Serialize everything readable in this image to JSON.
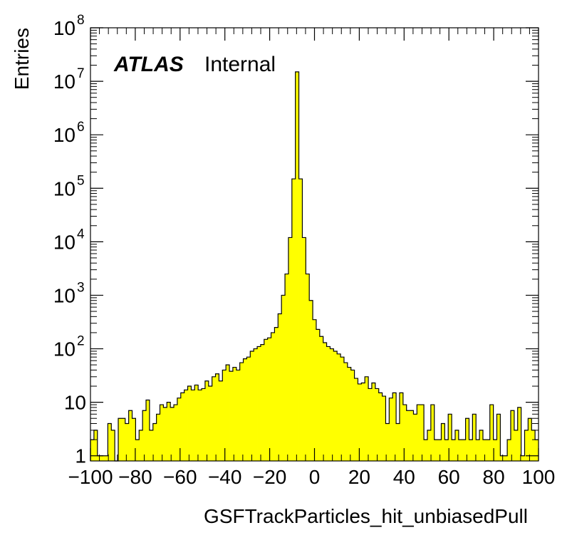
{
  "chart_data": {
    "type": "bar",
    "subtype": "histogram",
    "xlabel": "GSFTrackParticles_hit_unbiasedPull",
    "ylabel": "Entries",
    "xlim": [
      -100,
      100
    ],
    "ylim": [
      0.8,
      100000000
    ],
    "yscale": "log",
    "bin_width": 2,
    "fill_color": "#ffff00",
    "line_color": "#000000",
    "atlas_label": "ATLAS",
    "atlas_sublabel": "Internal",
    "x_ticks": [
      -100,
      -80,
      -60,
      -40,
      -20,
      0,
      20,
      40,
      60,
      80,
      100
    ],
    "x_tick_labels": [
      "−100",
      "−80",
      "−60",
      "−40",
      "−20",
      "0",
      "20",
      "40",
      "60",
      "80",
      "100"
    ],
    "y_ticks": [
      {
        "value": 1,
        "mantissa": "1",
        "exp": ""
      },
      {
        "value": 10,
        "mantissa": "10",
        "exp": ""
      },
      {
        "value": 100,
        "mantissa": "10",
        "exp": "2"
      },
      {
        "value": 1000,
        "mantissa": "10",
        "exp": "3"
      },
      {
        "value": 10000,
        "mantissa": "10",
        "exp": "4"
      },
      {
        "value": 100000,
        "mantissa": "10",
        "exp": "5"
      },
      {
        "value": 1000000,
        "mantissa": "10",
        "exp": "6"
      },
      {
        "value": 10000000,
        "mantissa": "10",
        "exp": "7"
      },
      {
        "value": 100000000,
        "mantissa": "10",
        "exp": "8"
      }
    ],
    "values": [
      2,
      3,
      1,
      1,
      1,
      4,
      3,
      0,
      5,
      5,
      4,
      7,
      5,
      2,
      3,
      7,
      11,
      3,
      4,
      6,
      9,
      8,
      10,
      8,
      9,
      12,
      15,
      17,
      20,
      17,
      21,
      17,
      18,
      25,
      20,
      30,
      34,
      25,
      40,
      50,
      38,
      45,
      40,
      55,
      65,
      70,
      90,
      100,
      110,
      120,
      150,
      160,
      200,
      250,
      450,
      1000,
      2500,
      12000,
      150000,
      15000000,
      150000,
      12000,
      2500,
      800,
      350,
      230,
      170,
      130,
      110,
      100,
      90,
      80,
      70,
      55,
      45,
      40,
      28,
      22,
      23,
      30,
      18,
      23,
      18,
      15,
      13,
      4,
      12,
      15,
      4,
      15,
      9,
      7,
      7,
      6,
      9,
      9,
      2,
      3,
      9,
      2,
      2,
      4,
      2,
      6,
      2,
      3,
      2,
      2,
      5,
      2,
      6,
      2,
      3,
      2,
      2,
      9,
      2,
      6,
      1,
      1,
      2,
      7,
      3,
      8,
      1,
      3,
      5,
      3,
      2
    ]
  }
}
